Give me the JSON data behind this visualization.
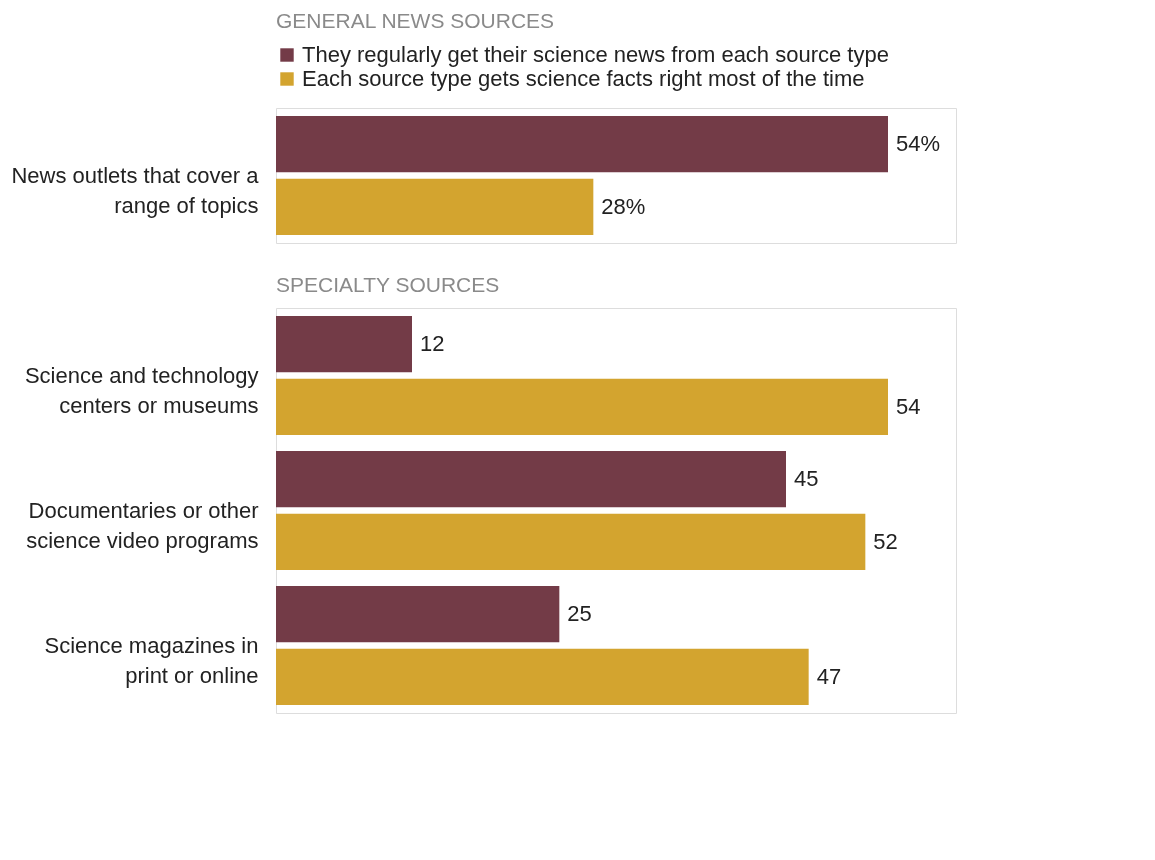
{
  "chart_data": [
    {
      "type": "bar",
      "orientation": "horizontal",
      "title": "GENERAL NEWS SOURCES",
      "categories": [
        "News outlets that cover a range of topics"
      ],
      "xlim": [
        0,
        60
      ],
      "legend": "top",
      "series": [
        {
          "name": "They regularly get their science news from each source type",
          "color": "#733b47",
          "values": [
            54
          ],
          "value_labels": [
            "54%"
          ]
        },
        {
          "name": "Each source type gets science facts right most of the time",
          "color": "#d3a42f",
          "values": [
            28
          ],
          "value_labels": [
            "28%"
          ]
        }
      ]
    },
    {
      "type": "bar",
      "orientation": "horizontal",
      "title": "SPECIALTY SOURCES",
      "categories": [
        "Science and technology centers or museums",
        "Documentaries or other science video programs",
        "Science magazines in print or online"
      ],
      "xlim": [
        0,
        60
      ],
      "data_labels": true,
      "series": [
        {
          "color": "#733b47",
          "values": [
            12,
            45,
            25
          ]
        },
        {
          "color": "#d3a42f",
          "values": [
            54,
            52,
            47
          ]
        }
      ]
    }
  ]
}
